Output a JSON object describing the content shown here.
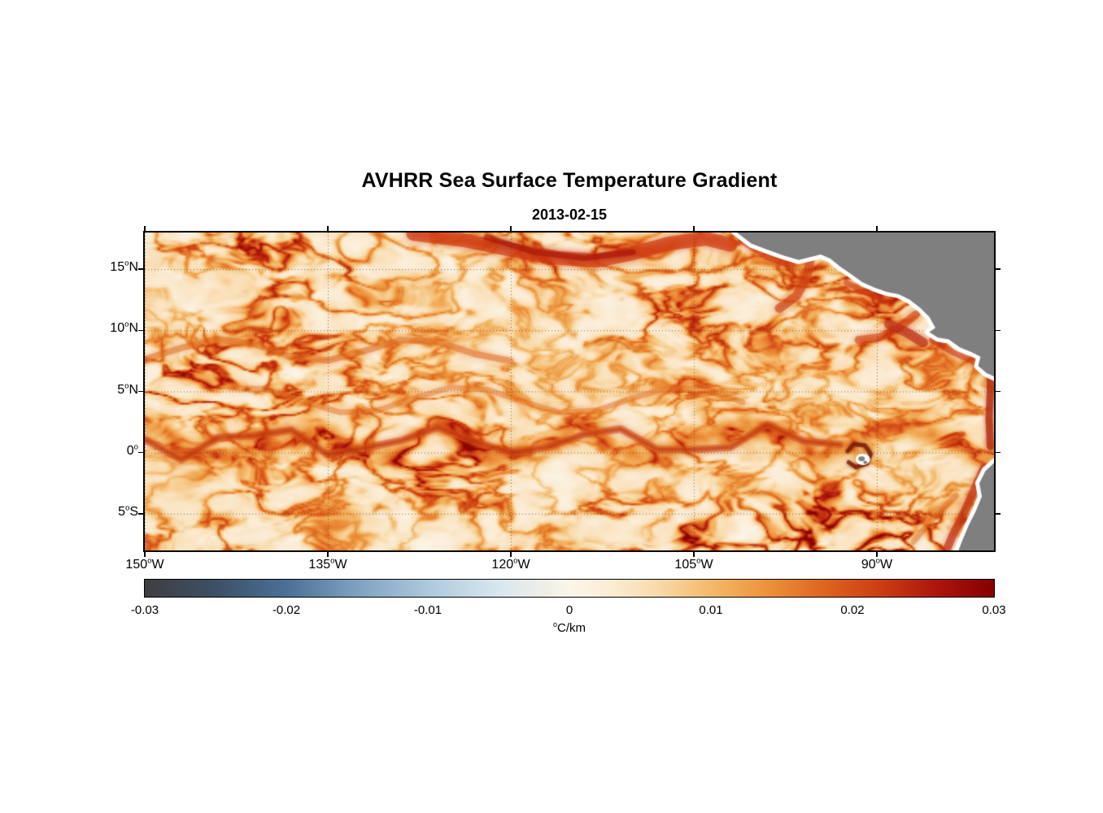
{
  "figure": {
    "title": "AVHRR Sea Surface Temperature Gradient",
    "date": "2013-02-15",
    "colorbar_label": "°C/km",
    "background_color": "#ffffff",
    "land_color": "#7f7f7f",
    "coast_halo_color": "#ffffff",
    "frame_color": "#000000",
    "grid_style": "dotted",
    "grid_color": "#46321e"
  },
  "map": {
    "x_ticks": [
      {
        "lon": 150,
        "label": "150°W"
      },
      {
        "lon": 135,
        "label": "135°W"
      },
      {
        "lon": 120,
        "label": "120°W"
      },
      {
        "lon": 105,
        "label": "105°W"
      },
      {
        "lon": 90,
        "label": "90°W"
      }
    ],
    "y_ticks": [
      {
        "lat": 15,
        "label": "15°N"
      },
      {
        "lat": 10,
        "label": "10°N"
      },
      {
        "lat": 5,
        "label": "5°N"
      },
      {
        "lat": 0,
        "label": "0°"
      },
      {
        "lat": -5,
        "label": "5°S"
      }
    ],
    "lon_west_range": [
      150,
      80.4
    ],
    "lat_range": [
      -8,
      18
    ]
  },
  "chart_data": {
    "type": "heatmap",
    "title": "AVHRR Sea Surface Temperature Gradient",
    "subtitle": "2013-02-15",
    "x_axis": {
      "label_ticks": [
        "150°W",
        "135°W",
        "120°W",
        "105°W",
        "90°W"
      ],
      "range_deg_west": [
        150,
        80.4
      ]
    },
    "y_axis": {
      "label_ticks": [
        "15°N",
        "10°N",
        "5°N",
        "0°",
        "5°S"
      ],
      "range_deg_north": [
        -8,
        18
      ]
    },
    "grid": "dotted graticule at each tick",
    "legend_position": "horizontal colorbar below map",
    "colorbar": {
      "min": -0.03,
      "max": 0.03,
      "ticks": [
        -0.03,
        -0.02,
        -0.01,
        0,
        0.01,
        0.02,
        0.03
      ],
      "tick_labels": [
        "-0.03",
        "-0.02",
        "-0.01",
        "0",
        "0.01",
        "0.02",
        "0.03"
      ],
      "units": "°C/km",
      "stops": [
        [
          -0.03,
          "#3e3e40"
        ],
        [
          -0.025,
          "#3d5066"
        ],
        [
          -0.02,
          "#4a7096"
        ],
        [
          -0.015,
          "#7fa1c0"
        ],
        [
          -0.01,
          "#adc8dc"
        ],
        [
          -0.005,
          "#d8e7ef"
        ],
        [
          -0.0015,
          "#f0efe6"
        ],
        [
          0,
          "#fbf6ea"
        ],
        [
          0.003,
          "#fbecd4"
        ],
        [
          0.006,
          "#f9dcae"
        ],
        [
          0.01,
          "#f4b96a"
        ],
        [
          0.014,
          "#ec923a"
        ],
        [
          0.018,
          "#df6420"
        ],
        [
          0.022,
          "#cb3d12"
        ],
        [
          0.026,
          "#ab150c"
        ],
        [
          0.03,
          "#860000"
        ]
      ]
    },
    "field_description": "Magnitude of AVHRR sea-surface temperature gradient over the eastern tropical Pacific (150°W–80°W, 8°S–18°N). Mostly pale cream background (0–0.008 °C/km) laced with curving orange filaments (0.01–0.02 °C/km) and red cores (>0.02 °C/km) along the equatorial front near 0–2°N, a front near 8–9°N, strong red patches along the Mexican/Central American coast (Tehuantepec, Papagayo, Panama jets), around the Galápagos Islands, and in the Peru coastal upwelling at the bottom-right. Gray land (Mexico/Central America upper right, Galápagos speck near 91°W 0.5°S, northwestern South America lower right) outlined by a white coastal data-gap halo."
  }
}
